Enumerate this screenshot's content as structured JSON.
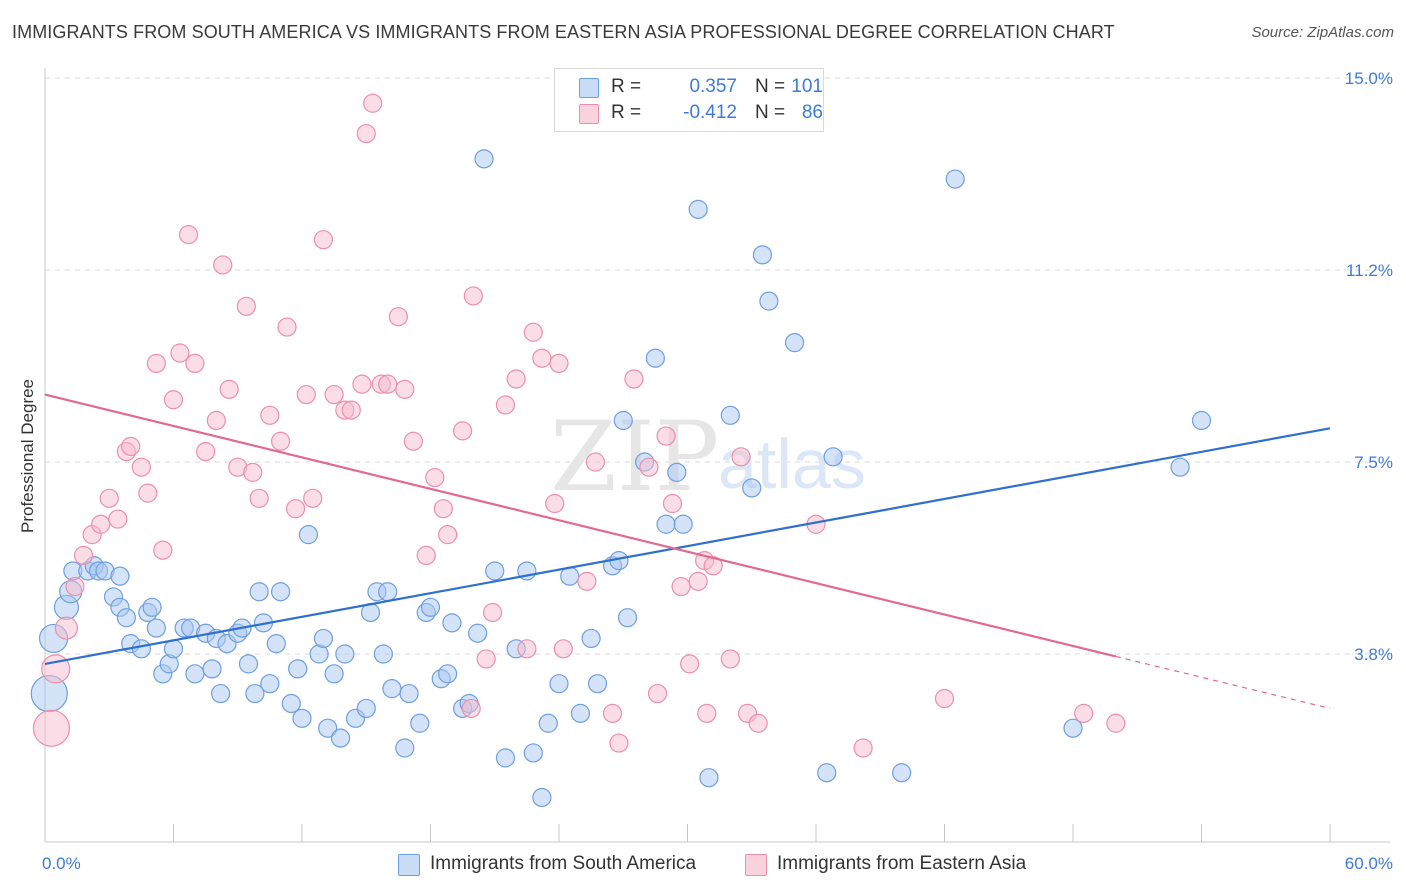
{
  "header": {
    "title": "IMMIGRANTS FROM SOUTH AMERICA VS IMMIGRANTS FROM EASTERN ASIA PROFESSIONAL DEGREE CORRELATION CHART",
    "source": "Source: ZipAtlas.com"
  },
  "watermark": {
    "zip": "ZIP",
    "atlas": "atlas"
  },
  "stats": {
    "blue": {
      "r_label": "R =",
      "r_value": "0.357",
      "n_label": "N =",
      "n_value": "101"
    },
    "pink": {
      "r_label": "R =",
      "r_value": "-0.412",
      "n_label": "N =",
      "n_value": "86"
    }
  },
  "legend": {
    "blue": "Immigrants from South America",
    "pink": "Immigrants from Eastern Asia"
  },
  "colors": {
    "blue_fill": "#a9c8f0",
    "blue_stroke": "#6e9fe0",
    "blue_line": "#2f6fcf",
    "pink_fill": "#f6bccd",
    "pink_stroke": "#ec8fab",
    "pink_line": "#e2698f",
    "axis_text": "#3d7bd6",
    "grid": "#d8d8d8"
  },
  "chart_data": {
    "type": "scatter",
    "xlabel": "",
    "ylabel": "Professional Degree",
    "xlim": [
      0,
      60
    ],
    "ylim": [
      0,
      16
    ],
    "x_tick_labels": [
      "0.0%",
      "60.0%"
    ],
    "y_ticks": [
      3.8,
      7.5,
      11.2,
      15.0
    ],
    "y_tick_labels": [
      "3.8%",
      "7.5%",
      "11.2%",
      "15.0%"
    ],
    "series": [
      {
        "name": "Immigrants from South America",
        "color": "blue",
        "trend": {
          "x": [
            0,
            60
          ],
          "y": [
            3.6,
            8.15
          ]
        },
        "points": [
          [
            0.2,
            3.0,
            18
          ],
          [
            0.4,
            4.1,
            14
          ],
          [
            1.0,
            4.7,
            12
          ],
          [
            1.2,
            5.0,
            11
          ],
          [
            1.3,
            5.4,
            9
          ],
          [
            2.0,
            5.4,
            9
          ],
          [
            2.3,
            5.5,
            9
          ],
          [
            2.5,
            5.4,
            9
          ],
          [
            2.8,
            5.4,
            9
          ],
          [
            3.2,
            4.9,
            9
          ],
          [
            3.5,
            5.3,
            9
          ],
          [
            3.5,
            4.7,
            9
          ],
          [
            3.8,
            4.5,
            9
          ],
          [
            4.0,
            4.0,
            9
          ],
          [
            4.5,
            3.9,
            9
          ],
          [
            4.8,
            4.6,
            9
          ],
          [
            5.0,
            4.7,
            9
          ],
          [
            5.2,
            4.3,
            9
          ],
          [
            5.5,
            3.4,
            9
          ],
          [
            5.8,
            3.6,
            9
          ],
          [
            6.0,
            3.9,
            9
          ],
          [
            6.5,
            4.3,
            9
          ],
          [
            6.8,
            4.3,
            9
          ],
          [
            7.0,
            3.4,
            9
          ],
          [
            7.5,
            4.2,
            9
          ],
          [
            7.8,
            3.5,
            9
          ],
          [
            8.0,
            4.1,
            9
          ],
          [
            8.2,
            3.0,
            9
          ],
          [
            8.5,
            4.0,
            9
          ],
          [
            9.0,
            4.2,
            9
          ],
          [
            9.2,
            4.3,
            9
          ],
          [
            9.5,
            3.6,
            9
          ],
          [
            9.8,
            3.0,
            9
          ],
          [
            10.0,
            5.0,
            9
          ],
          [
            10.2,
            4.4,
            9
          ],
          [
            10.5,
            3.2,
            9
          ],
          [
            10.8,
            4.0,
            9
          ],
          [
            11.0,
            5.0,
            9
          ],
          [
            11.5,
            2.8,
            9
          ],
          [
            11.8,
            3.5,
            9
          ],
          [
            12.0,
            2.5,
            9
          ],
          [
            12.3,
            6.1,
            9
          ],
          [
            12.8,
            3.8,
            9
          ],
          [
            13.0,
            4.1,
            9
          ],
          [
            13.2,
            2.3,
            9
          ],
          [
            13.5,
            3.4,
            9
          ],
          [
            13.8,
            2.1,
            9
          ],
          [
            14.0,
            3.8,
            9
          ],
          [
            14.5,
            2.5,
            9
          ],
          [
            15.0,
            2.7,
            9
          ],
          [
            15.2,
            4.6,
            9
          ],
          [
            15.5,
            5.0,
            9
          ],
          [
            15.8,
            3.8,
            9
          ],
          [
            16.0,
            5.0,
            9
          ],
          [
            16.2,
            3.1,
            9
          ],
          [
            16.8,
            1.9,
            9
          ],
          [
            17.0,
            3.0,
            9
          ],
          [
            17.5,
            2.4,
            9
          ],
          [
            17.8,
            4.6,
            9
          ],
          [
            18.0,
            4.7,
            9
          ],
          [
            18.5,
            3.3,
            9
          ],
          [
            18.8,
            3.4,
            9
          ],
          [
            19.0,
            4.4,
            9
          ],
          [
            19.5,
            2.7,
            9
          ],
          [
            19.8,
            2.8,
            9
          ],
          [
            20.2,
            4.2,
            9
          ],
          [
            20.5,
            13.4,
            9
          ],
          [
            21.0,
            5.4,
            9
          ],
          [
            21.5,
            1.7,
            9
          ],
          [
            22.0,
            3.9,
            9
          ],
          [
            22.5,
            5.4,
            9
          ],
          [
            22.8,
            1.8,
            9
          ],
          [
            23.2,
            0.9,
            9
          ],
          [
            23.5,
            2.4,
            9
          ],
          [
            24.0,
            3.2,
            9
          ],
          [
            24.5,
            5.3,
            9
          ],
          [
            25.0,
            2.6,
            9
          ],
          [
            25.5,
            4.1,
            9
          ],
          [
            25.8,
            3.2,
            9
          ],
          [
            26.5,
            5.5,
            9
          ],
          [
            26.8,
            5.6,
            9
          ],
          [
            27.0,
            8.3,
            9
          ],
          [
            27.2,
            4.5,
            9
          ],
          [
            28.0,
            7.5,
            9
          ],
          [
            28.5,
            9.5,
            9
          ],
          [
            29.0,
            6.3,
            9
          ],
          [
            29.5,
            7.3,
            9
          ],
          [
            29.8,
            6.3,
            9
          ],
          [
            30.5,
            12.4,
            9
          ],
          [
            31.0,
            1.3,
            9
          ],
          [
            32.0,
            8.4,
            9
          ],
          [
            33.0,
            7.0,
            9
          ],
          [
            33.5,
            11.5,
            9
          ],
          [
            33.8,
            10.6,
            9
          ],
          [
            35.0,
            9.8,
            9
          ],
          [
            36.5,
            1.4,
            9
          ],
          [
            36.8,
            7.6,
            9
          ],
          [
            40.0,
            1.4,
            9
          ],
          [
            42.5,
            13.0,
            9
          ],
          [
            48.0,
            2.3,
            9
          ],
          [
            53.0,
            7.4,
            9
          ],
          [
            54.0,
            8.3,
            9
          ]
        ]
      },
      {
        "name": "Immigrants from Eastern Asia",
        "color": "pink",
        "trend": {
          "x": [
            0,
            50
          ],
          "y": [
            8.8,
            3.75
          ]
        },
        "trend_dashed": {
          "x": [
            50,
            60
          ],
          "y": [
            3.75,
            2.7
          ]
        },
        "points": [
          [
            0.3,
            2.3,
            18
          ],
          [
            0.5,
            3.5,
            14
          ],
          [
            1.0,
            4.3,
            11
          ],
          [
            1.4,
            5.1,
            9
          ],
          [
            1.8,
            5.7,
            9
          ],
          [
            2.2,
            6.1,
            9
          ],
          [
            2.6,
            6.3,
            9
          ],
          [
            3.0,
            6.8,
            9
          ],
          [
            3.4,
            6.4,
            9
          ],
          [
            3.8,
            7.7,
            9
          ],
          [
            4.0,
            7.8,
            9
          ],
          [
            4.5,
            7.4,
            9
          ],
          [
            4.8,
            6.9,
            9
          ],
          [
            5.2,
            9.4,
            9
          ],
          [
            5.5,
            5.8,
            9
          ],
          [
            6.0,
            8.7,
            9
          ],
          [
            6.3,
            9.6,
            9
          ],
          [
            6.7,
            11.9,
            9
          ],
          [
            7.0,
            9.4,
            9
          ],
          [
            7.5,
            7.7,
            9
          ],
          [
            8.0,
            8.3,
            9
          ],
          [
            8.3,
            11.3,
            9
          ],
          [
            8.6,
            8.9,
            9
          ],
          [
            9.0,
            7.4,
            9
          ],
          [
            9.4,
            10.5,
            9
          ],
          [
            9.7,
            7.3,
            9
          ],
          [
            10.0,
            6.8,
            9
          ],
          [
            10.5,
            8.4,
            9
          ],
          [
            11.0,
            7.9,
            9
          ],
          [
            11.3,
            10.1,
            9
          ],
          [
            11.7,
            6.6,
            9
          ],
          [
            12.2,
            8.8,
            9
          ],
          [
            12.5,
            6.8,
            9
          ],
          [
            13.0,
            11.8,
            9
          ],
          [
            13.5,
            8.8,
            9
          ],
          [
            14.0,
            8.5,
            9
          ],
          [
            14.3,
            8.5,
            9
          ],
          [
            14.8,
            9.0,
            9
          ],
          [
            15.0,
            13.9,
            9
          ],
          [
            15.3,
            14.5,
            9
          ],
          [
            15.7,
            9.0,
            9
          ],
          [
            16.0,
            9.0,
            9
          ],
          [
            16.5,
            10.3,
            9
          ],
          [
            16.8,
            8.9,
            9
          ],
          [
            17.2,
            7.9,
            9
          ],
          [
            17.8,
            5.7,
            9
          ],
          [
            18.2,
            7.2,
            9
          ],
          [
            18.6,
            6.6,
            9
          ],
          [
            18.8,
            6.1,
            9
          ],
          [
            19.5,
            8.1,
            9
          ],
          [
            19.9,
            2.7,
            9
          ],
          [
            20.0,
            10.7,
            9
          ],
          [
            20.6,
            3.7,
            9
          ],
          [
            20.9,
            4.6,
            9
          ],
          [
            21.5,
            8.6,
            9
          ],
          [
            22.0,
            9.1,
            9
          ],
          [
            22.5,
            3.9,
            9
          ],
          [
            22.8,
            10.0,
            9
          ],
          [
            23.2,
            9.5,
            9
          ],
          [
            23.8,
            6.7,
            9
          ],
          [
            24.0,
            9.4,
            9
          ],
          [
            24.2,
            3.9,
            9
          ],
          [
            25.3,
            5.2,
            9
          ],
          [
            25.7,
            7.5,
            9
          ],
          [
            26.5,
            2.6,
            9
          ],
          [
            26.8,
            2.0,
            9
          ],
          [
            27.5,
            9.1,
            9
          ],
          [
            28.2,
            7.4,
            9
          ],
          [
            28.6,
            3.0,
            9
          ],
          [
            29.0,
            8.0,
            9
          ],
          [
            29.3,
            6.7,
            9
          ],
          [
            29.7,
            5.1,
            9
          ],
          [
            30.1,
            3.6,
            9
          ],
          [
            30.5,
            5.2,
            9
          ],
          [
            30.8,
            5.6,
            9
          ],
          [
            30.9,
            2.6,
            9
          ],
          [
            31.2,
            5.5,
            9
          ],
          [
            32.0,
            3.7,
            9
          ],
          [
            32.5,
            7.6,
            9
          ],
          [
            32.8,
            2.6,
            9
          ],
          [
            33.3,
            2.4,
            9
          ],
          [
            36.0,
            6.3,
            9
          ],
          [
            38.2,
            1.9,
            9
          ],
          [
            42.0,
            2.9,
            9
          ],
          [
            48.5,
            2.6,
            9
          ],
          [
            50.0,
            2.4,
            9
          ]
        ]
      }
    ]
  }
}
